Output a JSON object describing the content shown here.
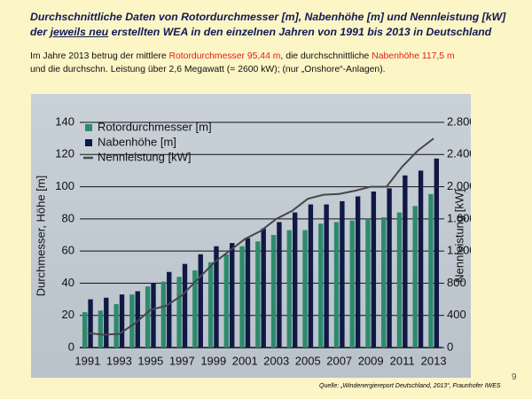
{
  "header": {
    "title_line1": "Durchschnittliche Daten von Rotordurchmesser [m], Nabenhöhe [m] und Nennleistung [kW]",
    "title_line2": [
      "der ",
      "jeweils neu",
      " erstellten WEA in den einzelnen Jahren von 1991 bis 2013 in Deutschland"
    ],
    "subtitle_line1": [
      "Im Jahre 2013 betrug der mittlere ",
      "Rotordurchmesser 95,44 m",
      ",  die durchschnittliche ",
      "Nabenhöhe 117,5 m"
    ],
    "subtitle_line2": "und die durchschn. Leistung über 2,6 Megawatt (= 2600 kW);   (nur „Onshore“-Anlagen)."
  },
  "source": "Quelle:  „Windenergiereport Deutschland, 2013“, Fraunhofer IWES",
  "page_number": "9",
  "chart_data": {
    "type": "bar",
    "categories": [
      "1991",
      null,
      "1993",
      null,
      "1995",
      null,
      "1997",
      null,
      "1999",
      null,
      "2001",
      null,
      "2003",
      null,
      "2005",
      null,
      "2007",
      null,
      "2009",
      null,
      "2011",
      null,
      "2013"
    ],
    "series": [
      {
        "name": "Rotordurchmesser [m]",
        "type": "bar",
        "color": "#2e8a6c",
        "values": [
          22,
          23,
          27,
          33,
          38,
          41,
          44,
          48,
          53,
          58,
          63,
          66,
          70,
          73,
          73,
          77,
          78,
          79,
          80,
          81,
          84,
          88,
          95.44
        ]
      },
      {
        "name": "Nabenhöhe [m]",
        "type": "bar",
        "color": "#101846",
        "values": [
          30,
          31,
          33,
          35,
          40,
          47,
          52,
          58,
          63,
          65,
          68,
          74,
          78,
          84,
          89,
          89,
          91,
          94,
          97,
          99,
          107,
          110,
          117.5
        ]
      },
      {
        "name": "Nennleistung [kW]",
        "type": "line",
        "axis": "y2",
        "color": "#45474c",
        "values": [
          180,
          160,
          170,
          300,
          470,
          520,
          650,
          850,
          1050,
          1200,
          1350,
          1450,
          1600,
          1700,
          1850,
          1900,
          1910,
          1950,
          2000,
          2000,
          2250,
          2450,
          2600
        ]
      }
    ],
    "ylabel": "Durchmesser, Höhe [m]",
    "y2label": "Nennleistung [kW]",
    "ylim": [
      0,
      140
    ],
    "yticks": [
      0,
      20,
      40,
      60,
      80,
      100,
      120,
      140
    ],
    "y2lim": [
      0,
      2800
    ],
    "y2ticks": [
      0,
      400,
      800,
      {
        "value": 1200,
        "label": "1.200"
      },
      {
        "value": 1600,
        "label": "1.600"
      },
      {
        "value": 2000,
        "label": "2.000"
      },
      {
        "value": 2400,
        "label": "2.400"
      },
      {
        "value": 2800,
        "label": "2.800"
      }
    ],
    "grid": true,
    "legend": "upper left"
  }
}
